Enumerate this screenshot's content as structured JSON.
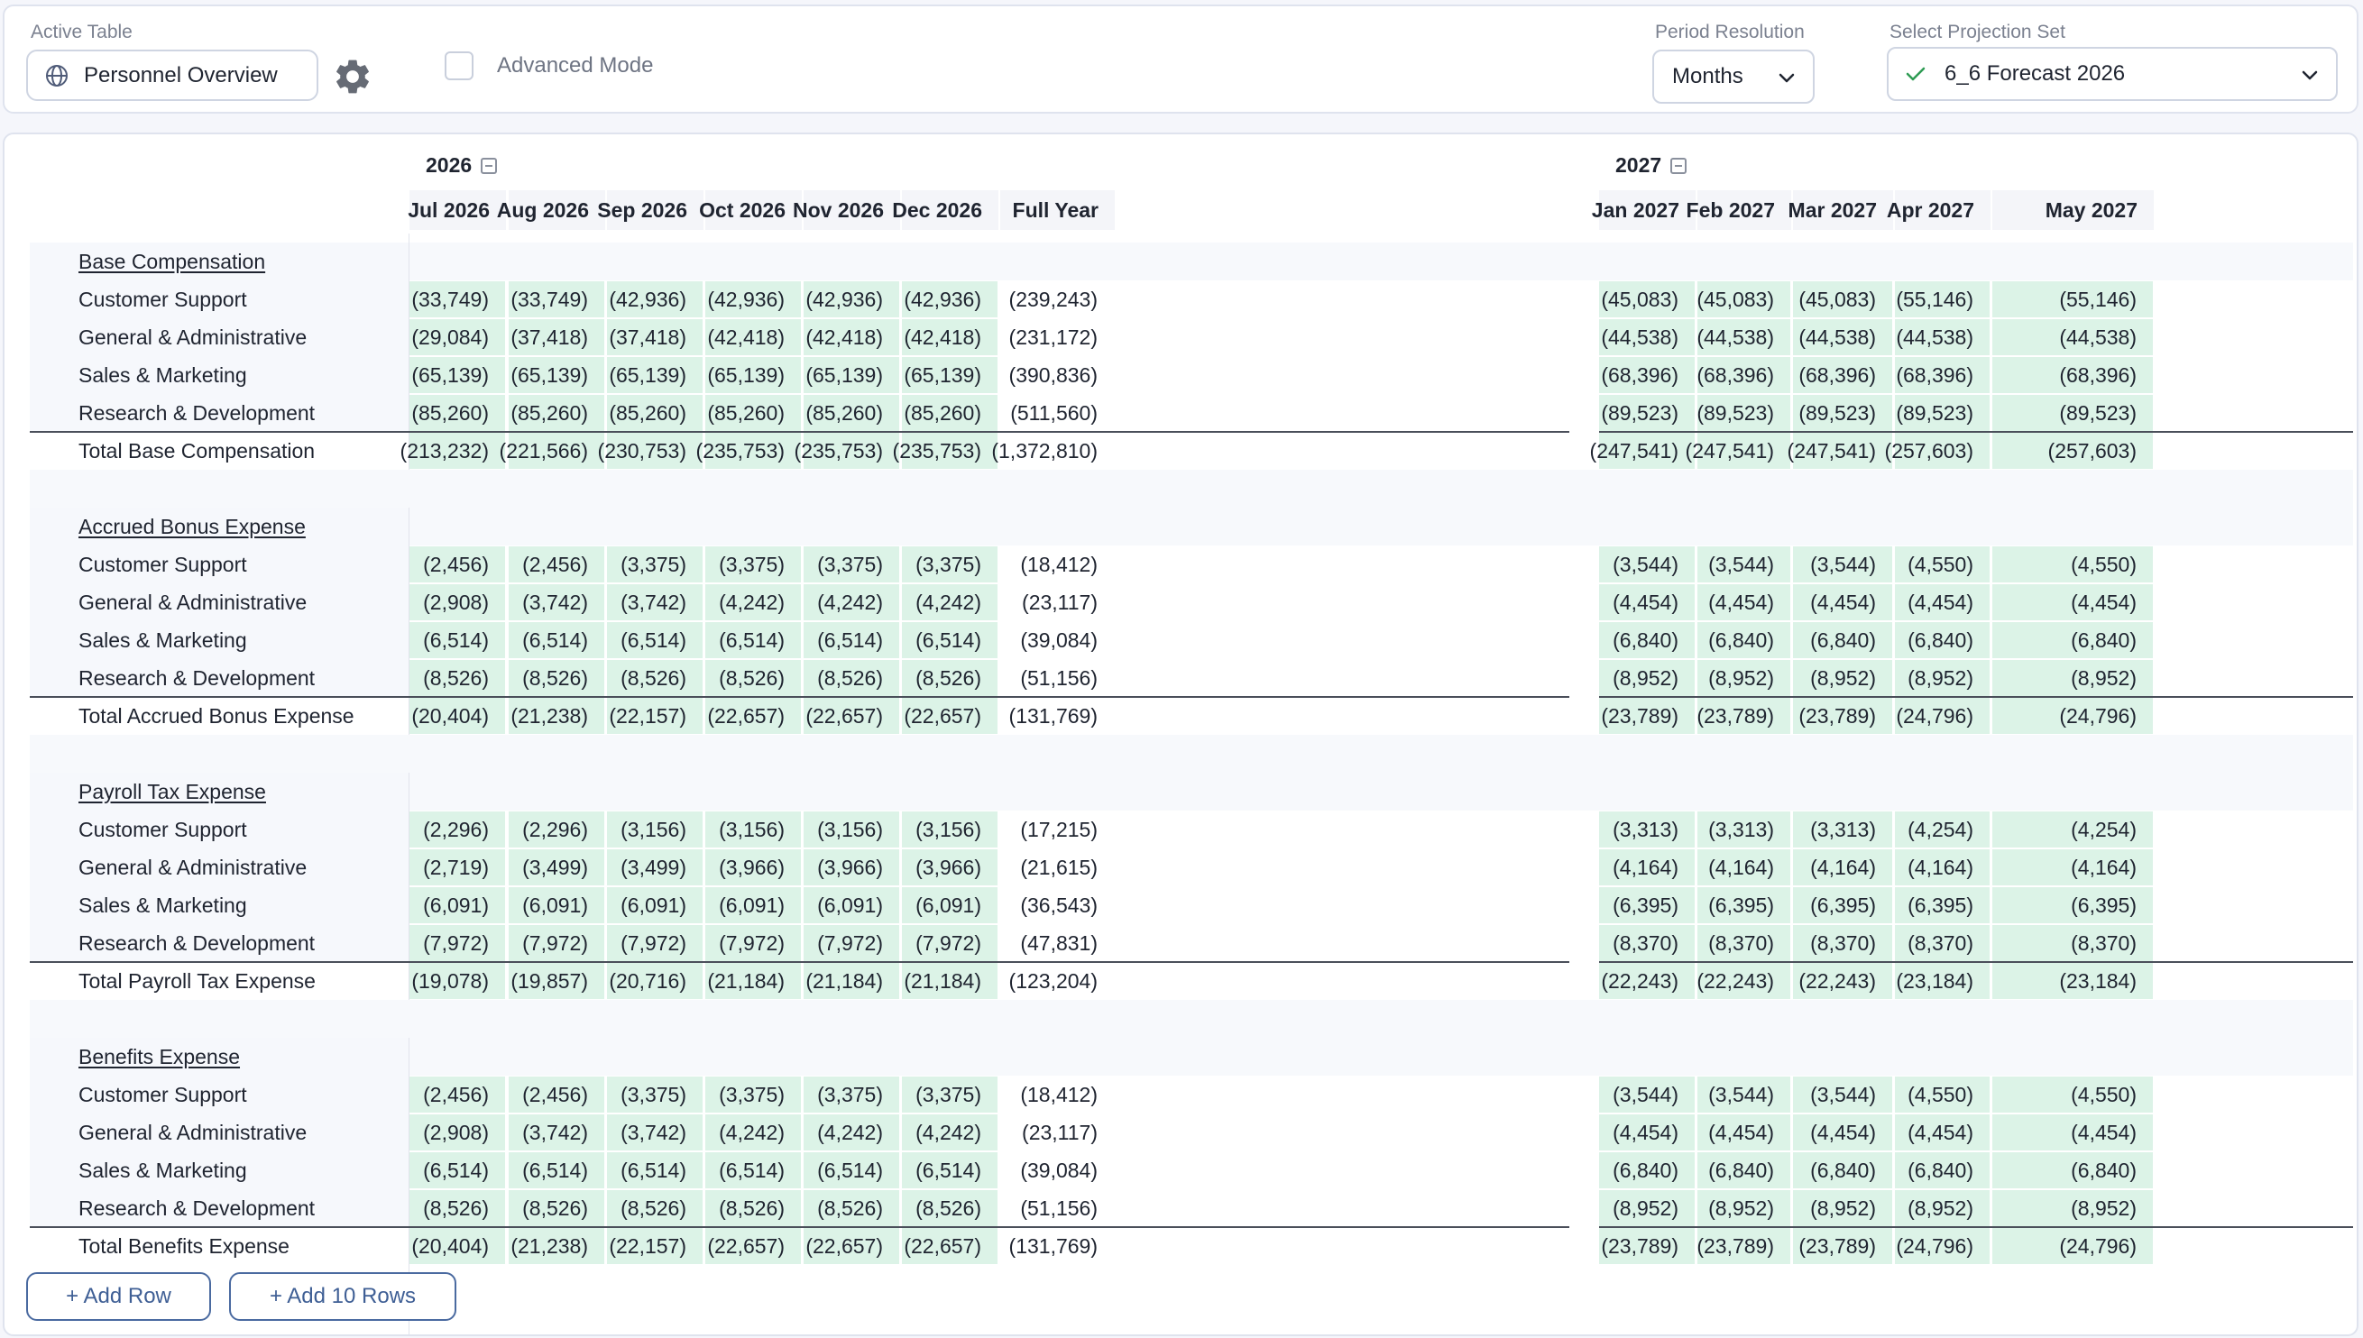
{
  "topbar": {
    "active_table_label": "Active Table",
    "active_table_value": "Personnel Overview",
    "advanced_mode_label": "Advanced Mode",
    "period_resolution_label": "Period Resolution",
    "period_resolution_value": "Months",
    "projection_set_label": "Select Projection Set",
    "projection_set_value": "6_6 Forecast 2026",
    "accent_check_color": "#2e9b53"
  },
  "years": [
    "2026",
    "2027"
  ],
  "columns": [
    "Jul 2026",
    "Aug 2026",
    "Sep 2026",
    "Oct 2026",
    "Nov 2026",
    "Dec 2026",
    "Full Year",
    "Jan 2027",
    "Feb 2027",
    "Mar 2027",
    "Apr 2027",
    "May 2027"
  ],
  "sections": [
    {
      "title": "Base Compensation",
      "rows": [
        {
          "label": "Customer Support",
          "values": [
            "(33,749)",
            "(33,749)",
            "(42,936)",
            "(42,936)",
            "(42,936)",
            "(42,936)",
            "(239,243)",
            "(45,083)",
            "(45,083)",
            "(45,083)",
            "(55,146)",
            "(55,146)"
          ]
        },
        {
          "label": "General & Administrative",
          "values": [
            "(29,084)",
            "(37,418)",
            "(37,418)",
            "(42,418)",
            "(42,418)",
            "(42,418)",
            "(231,172)",
            "(44,538)",
            "(44,538)",
            "(44,538)",
            "(44,538)",
            "(44,538)"
          ]
        },
        {
          "label": "Sales & Marketing",
          "values": [
            "(65,139)",
            "(65,139)",
            "(65,139)",
            "(65,139)",
            "(65,139)",
            "(65,139)",
            "(390,836)",
            "(68,396)",
            "(68,396)",
            "(68,396)",
            "(68,396)",
            "(68,396)"
          ]
        },
        {
          "label": "Research & Development",
          "values": [
            "(85,260)",
            "(85,260)",
            "(85,260)",
            "(85,260)",
            "(85,260)",
            "(85,260)",
            "(511,560)",
            "(89,523)",
            "(89,523)",
            "(89,523)",
            "(89,523)",
            "(89,523)"
          ]
        }
      ],
      "total": {
        "label": "Total Base Compensation",
        "values": [
          "(213,232)",
          "(221,566)",
          "(230,753)",
          "(235,753)",
          "(235,753)",
          "(235,753)",
          "(1,372,810)",
          "(247,541)",
          "(247,541)",
          "(247,541)",
          "(257,603)",
          "(257,603)"
        ]
      }
    },
    {
      "title": "Accrued Bonus Expense",
      "rows": [
        {
          "label": "Customer Support",
          "values": [
            "(2,456)",
            "(2,456)",
            "(3,375)",
            "(3,375)",
            "(3,375)",
            "(3,375)",
            "(18,412)",
            "(3,544)",
            "(3,544)",
            "(3,544)",
            "(4,550)",
            "(4,550)"
          ]
        },
        {
          "label": "General & Administrative",
          "values": [
            "(2,908)",
            "(3,742)",
            "(3,742)",
            "(4,242)",
            "(4,242)",
            "(4,242)",
            "(23,117)",
            "(4,454)",
            "(4,454)",
            "(4,454)",
            "(4,454)",
            "(4,454)"
          ]
        },
        {
          "label": "Sales & Marketing",
          "values": [
            "(6,514)",
            "(6,514)",
            "(6,514)",
            "(6,514)",
            "(6,514)",
            "(6,514)",
            "(39,084)",
            "(6,840)",
            "(6,840)",
            "(6,840)",
            "(6,840)",
            "(6,840)"
          ]
        },
        {
          "label": "Research & Development",
          "values": [
            "(8,526)",
            "(8,526)",
            "(8,526)",
            "(8,526)",
            "(8,526)",
            "(8,526)",
            "(51,156)",
            "(8,952)",
            "(8,952)",
            "(8,952)",
            "(8,952)",
            "(8,952)"
          ]
        }
      ],
      "total": {
        "label": "Total Accrued Bonus Expense",
        "values": [
          "(20,404)",
          "(21,238)",
          "(22,157)",
          "(22,657)",
          "(22,657)",
          "(22,657)",
          "(131,769)",
          "(23,789)",
          "(23,789)",
          "(23,789)",
          "(24,796)",
          "(24,796)"
        ]
      }
    },
    {
      "title": "Payroll Tax Expense",
      "rows": [
        {
          "label": "Customer Support",
          "values": [
            "(2,296)",
            "(2,296)",
            "(3,156)",
            "(3,156)",
            "(3,156)",
            "(3,156)",
            "(17,215)",
            "(3,313)",
            "(3,313)",
            "(3,313)",
            "(4,254)",
            "(4,254)"
          ]
        },
        {
          "label": "General & Administrative",
          "values": [
            "(2,719)",
            "(3,499)",
            "(3,499)",
            "(3,966)",
            "(3,966)",
            "(3,966)",
            "(21,615)",
            "(4,164)",
            "(4,164)",
            "(4,164)",
            "(4,164)",
            "(4,164)"
          ]
        },
        {
          "label": "Sales & Marketing",
          "values": [
            "(6,091)",
            "(6,091)",
            "(6,091)",
            "(6,091)",
            "(6,091)",
            "(6,091)",
            "(36,543)",
            "(6,395)",
            "(6,395)",
            "(6,395)",
            "(6,395)",
            "(6,395)"
          ]
        },
        {
          "label": "Research & Development",
          "values": [
            "(7,972)",
            "(7,972)",
            "(7,972)",
            "(7,972)",
            "(7,972)",
            "(7,972)",
            "(47,831)",
            "(8,370)",
            "(8,370)",
            "(8,370)",
            "(8,370)",
            "(8,370)"
          ]
        }
      ],
      "total": {
        "label": "Total Payroll Tax Expense",
        "values": [
          "(19,078)",
          "(19,857)",
          "(20,716)",
          "(21,184)",
          "(21,184)",
          "(21,184)",
          "(123,204)",
          "(22,243)",
          "(22,243)",
          "(22,243)",
          "(23,184)",
          "(23,184)"
        ]
      }
    },
    {
      "title": "Benefits Expense",
      "rows": [
        {
          "label": "Customer Support",
          "values": [
            "(2,456)",
            "(2,456)",
            "(3,375)",
            "(3,375)",
            "(3,375)",
            "(3,375)",
            "(18,412)",
            "(3,544)",
            "(3,544)",
            "(3,544)",
            "(4,550)",
            "(4,550)"
          ]
        },
        {
          "label": "General & Administrative",
          "values": [
            "(2,908)",
            "(3,742)",
            "(3,742)",
            "(4,242)",
            "(4,242)",
            "(4,242)",
            "(23,117)",
            "(4,454)",
            "(4,454)",
            "(4,454)",
            "(4,454)",
            "(4,454)"
          ]
        },
        {
          "label": "Sales & Marketing",
          "values": [
            "(6,514)",
            "(6,514)",
            "(6,514)",
            "(6,514)",
            "(6,514)",
            "(6,514)",
            "(39,084)",
            "(6,840)",
            "(6,840)",
            "(6,840)",
            "(6,840)",
            "(6,840)"
          ]
        },
        {
          "label": "Research & Development",
          "values": [
            "(8,526)",
            "(8,526)",
            "(8,526)",
            "(8,526)",
            "(8,526)",
            "(8,526)",
            "(51,156)",
            "(8,952)",
            "(8,952)",
            "(8,952)",
            "(8,952)",
            "(8,952)"
          ]
        }
      ],
      "total": {
        "label": "Total Benefits Expense",
        "values": [
          "(20,404)",
          "(21,238)",
          "(22,157)",
          "(22,657)",
          "(22,657)",
          "(22,657)",
          "(131,769)",
          "(23,789)",
          "(23,789)",
          "(23,789)",
          "(24,796)",
          "(24,796)"
        ]
      }
    }
  ],
  "footer": {
    "add_row_label": "+ Add Row",
    "add_10_rows_label": "+ Add 10 Rows"
  },
  "colors": {
    "cell_fill": "#dcf3e7",
    "button_accent": "#3f5f95"
  }
}
